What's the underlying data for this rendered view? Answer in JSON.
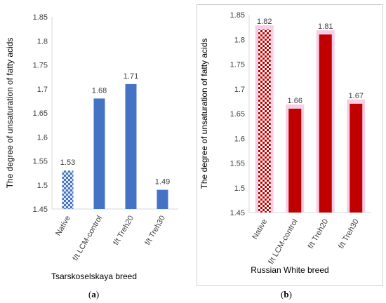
{
  "colors": {
    "panel_a_bar": "#4472c4",
    "panel_b_bar": "#c00000",
    "panel_b_highlight": "#f6cfe6",
    "axis": "#d9d9d9",
    "text": "#404040"
  },
  "chart_data": [
    {
      "type": "bar",
      "title": "",
      "caption": "Tsarskoselskaya breed",
      "xlabel": "",
      "ylabel": "The degree of unsaturation of fatty acids",
      "categories": [
        "Native",
        "f/t LCM-control",
        "f/t Treh20",
        "f/t Treh30"
      ],
      "values": [
        1.53,
        1.68,
        1.71,
        1.49
      ],
      "value_labels": [
        "1.53",
        "1.68",
        "1.71",
        "1.49"
      ],
      "ylim": [
        1.45,
        1.85
      ],
      "yticks": [
        "1.45",
        "1.5",
        "1.55",
        "1.6",
        "1.65",
        "1.7",
        "1.75",
        "1.8",
        "1.85"
      ],
      "grid": false,
      "legend": "none",
      "pattern_first_bar": true
    },
    {
      "type": "bar",
      "title": "",
      "caption": "Russian White breed",
      "xlabel": "",
      "ylabel": "The degree of unsaturation of fatty acids",
      "categories": [
        "Native",
        "f/t LCM-control",
        "f/t Treh20",
        "f/t Treh30"
      ],
      "values": [
        1.82,
        1.66,
        1.81,
        1.67
      ],
      "value_labels": [
        "1.82",
        "1.66",
        "1.81",
        "1.67"
      ],
      "ylim": [
        1.45,
        1.85
      ],
      "yticks": [
        "1.45",
        "1.5",
        "1.55",
        "1.6",
        "1.65",
        "1.7",
        "1.75",
        "1.8",
        "1.85"
      ],
      "grid": false,
      "legend": "none",
      "pattern_first_bar": true
    }
  ],
  "subfigure_labels": [
    "a",
    "b"
  ]
}
